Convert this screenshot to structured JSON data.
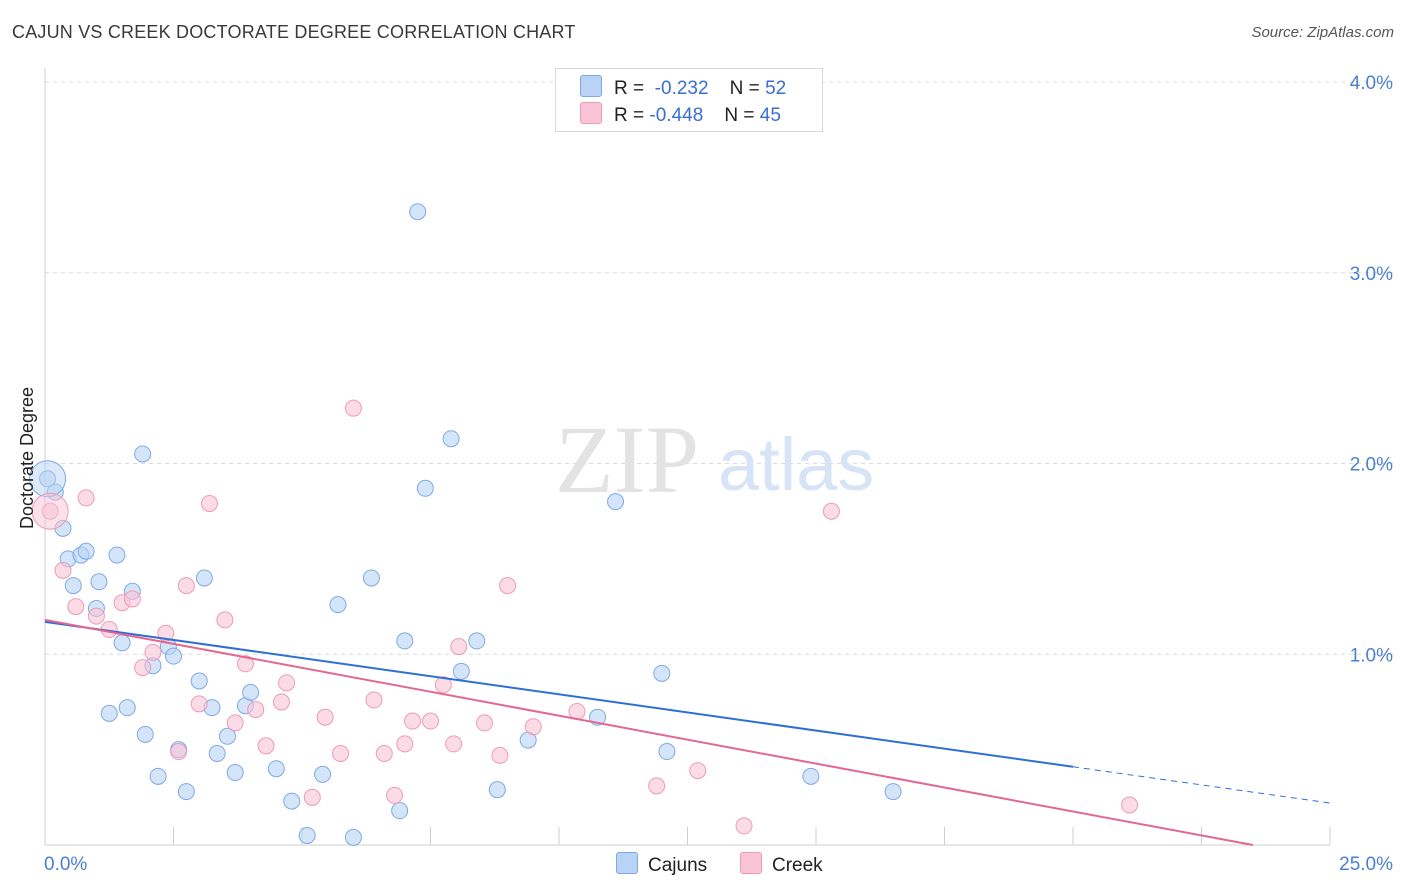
{
  "title": "CAJUN VS CREEK DOCTORATE DEGREE CORRELATION CHART",
  "source": "Source: ZipAtlas.com",
  "watermark": {
    "zip": "ZIP",
    "atlas": "atlas"
  },
  "legend": {
    "r_label": "R =",
    "n_label": "N =",
    "rows": [
      {
        "r": "-0.232",
        "n": "52"
      },
      {
        "r": "-0.448",
        "n": "45"
      }
    ]
  },
  "bottom_legend": [
    "Cajuns",
    "Creek"
  ],
  "colors": {
    "cajuns_fill": "#b8d3f5",
    "cajuns_stroke": "#7ea9e6",
    "cajuns_line": "#2e6fd4",
    "creek_fill": "#f8c5d6",
    "creek_stroke": "#ee9ab7",
    "creek_line": "#e2688f",
    "tick_text": "#4a7fd1",
    "grid": "#dcdcdc"
  },
  "chart_data": {
    "type": "scatter",
    "ylabel": "Doctorate Degree",
    "xlim": [
      0,
      25
    ],
    "ylim": [
      0,
      4
    ],
    "x_tick_labels": [
      "0.0%",
      "25.0%"
    ],
    "y_ticks": [
      1,
      2,
      3,
      4
    ],
    "y_tick_labels": [
      "1.0%",
      "2.0%",
      "3.0%",
      "4.0%"
    ],
    "grid": "horizontal dashed",
    "series": [
      {
        "name": "Cajuns",
        "r": -0.232,
        "n": 52,
        "trend": {
          "x0": 0,
          "y0": 1.17,
          "x1": 20,
          "y1": 0.41,
          "dashed_to": 25,
          "y_end": 0.22
        },
        "points": [
          [
            0.05,
            1.92
          ],
          [
            0.2,
            1.85
          ],
          [
            0.35,
            1.66
          ],
          [
            0.45,
            1.5
          ],
          [
            0.55,
            1.36
          ],
          [
            0.7,
            1.52
          ],
          [
            0.8,
            1.54
          ],
          [
            1.0,
            1.24
          ],
          [
            1.05,
            1.38
          ],
          [
            1.25,
            0.69
          ],
          [
            1.4,
            1.52
          ],
          [
            1.5,
            1.06
          ],
          [
            1.6,
            0.72
          ],
          [
            1.7,
            1.33
          ],
          [
            1.9,
            2.05
          ],
          [
            1.95,
            0.58
          ],
          [
            2.1,
            0.94
          ],
          [
            2.2,
            0.36
          ],
          [
            2.4,
            1.04
          ],
          [
            2.5,
            0.99
          ],
          [
            2.6,
            0.5
          ],
          [
            2.75,
            0.28
          ],
          [
            3.0,
            0.86
          ],
          [
            3.1,
            1.4
          ],
          [
            3.25,
            0.72
          ],
          [
            3.35,
            0.48
          ],
          [
            3.55,
            0.57
          ],
          [
            3.7,
            0.38
          ],
          [
            3.9,
            0.73
          ],
          [
            4.0,
            0.8
          ],
          [
            4.5,
            0.4
          ],
          [
            4.8,
            0.23
          ],
          [
            5.1,
            0.05
          ],
          [
            5.4,
            0.37
          ],
          [
            5.7,
            1.26
          ],
          [
            6.0,
            0.04
          ],
          [
            6.35,
            1.4
          ],
          [
            6.9,
            0.18
          ],
          [
            7.0,
            1.07
          ],
          [
            7.25,
            3.32
          ],
          [
            7.4,
            1.87
          ],
          [
            7.9,
            2.13
          ],
          [
            8.1,
            0.91
          ],
          [
            8.4,
            1.07
          ],
          [
            8.8,
            0.29
          ],
          [
            9.4,
            0.55
          ],
          [
            10.75,
            0.67
          ],
          [
            11.1,
            1.8
          ],
          [
            12.0,
            0.9
          ],
          [
            12.1,
            0.49
          ],
          [
            14.9,
            0.36
          ],
          [
            16.5,
            0.28
          ]
        ]
      },
      {
        "name": "Creek",
        "r": -0.448,
        "n": 45,
        "trend": {
          "x0": 0,
          "y0": 1.18,
          "x1": 23.5,
          "y1": 0.0
        },
        "points": [
          [
            0.1,
            1.75
          ],
          [
            0.35,
            1.44
          ],
          [
            0.6,
            1.25
          ],
          [
            0.8,
            1.82
          ],
          [
            1.0,
            1.2
          ],
          [
            1.25,
            1.13
          ],
          [
            1.5,
            1.27
          ],
          [
            1.7,
            1.29
          ],
          [
            1.9,
            0.93
          ],
          [
            2.1,
            1.01
          ],
          [
            2.35,
            1.11
          ],
          [
            2.6,
            0.49
          ],
          [
            2.75,
            1.36
          ],
          [
            3.0,
            0.74
          ],
          [
            3.2,
            1.79
          ],
          [
            3.5,
            1.18
          ],
          [
            3.7,
            0.64
          ],
          [
            3.9,
            0.95
          ],
          [
            4.1,
            0.71
          ],
          [
            4.3,
            0.52
          ],
          [
            4.6,
            0.75
          ],
          [
            4.7,
            0.85
          ],
          [
            5.2,
            0.25
          ],
          [
            5.45,
            0.67
          ],
          [
            5.75,
            0.48
          ],
          [
            6.0,
            2.29
          ],
          [
            6.4,
            0.76
          ],
          [
            6.6,
            0.48
          ],
          [
            6.8,
            0.26
          ],
          [
            7.0,
            0.53
          ],
          [
            7.15,
            0.65
          ],
          [
            7.5,
            0.65
          ],
          [
            7.75,
            0.84
          ],
          [
            7.95,
            0.53
          ],
          [
            8.05,
            1.04
          ],
          [
            8.55,
            0.64
          ],
          [
            8.85,
            0.47
          ],
          [
            9.0,
            1.36
          ],
          [
            9.5,
            0.62
          ],
          [
            10.35,
            0.7
          ],
          [
            11.9,
            0.31
          ],
          [
            12.7,
            0.39
          ],
          [
            13.6,
            0.1
          ],
          [
            15.3,
            1.75
          ],
          [
            21.1,
            0.21
          ]
        ]
      }
    ]
  }
}
